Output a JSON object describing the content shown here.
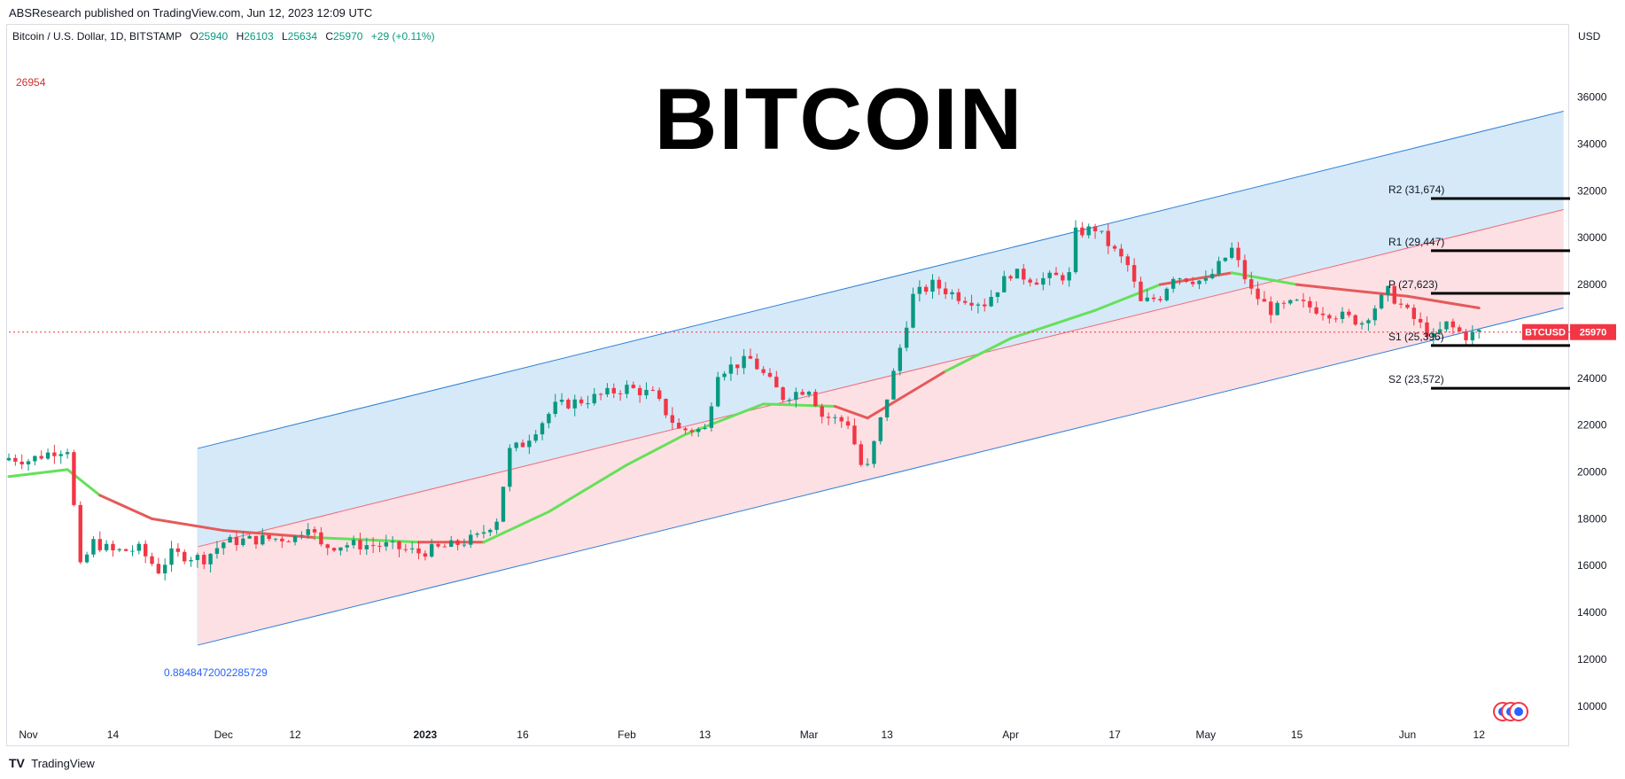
{
  "header": {
    "caption": "ABSResearch published on TradingView.com, Jun 12, 2023 12:09 UTC",
    "title": "BITCOIN"
  },
  "legend": {
    "symbol": "Bitcoin / U.S. Dollar, 1D, BITSTAMP",
    "o_label": "O",
    "o_value": "25940",
    "h_label": "H",
    "h_value": "26103",
    "l_label": "L",
    "l_value": "25634",
    "c_label": "C",
    "c_value": "25970",
    "change": "+29 (+0.11%)",
    "up_color": "#089981",
    "down_color": "#f23645"
  },
  "currency": "USD",
  "high_marker": "26954",
  "fib_level_label": "0.8848472002285729",
  "price_tag": {
    "symbol": "BTCUSD",
    "value": "25970",
    "color": "#f23645"
  },
  "footer": {
    "logo": "TV",
    "brand": "TradingView"
  },
  "chart_data": {
    "type": "candlestick",
    "title": "BITCOIN",
    "instrument": "Bitcoin / U.S. Dollar",
    "interval": "1D",
    "exchange": "BITSTAMP",
    "y_axis": {
      "label": "USD",
      "range": [
        9500,
        37500
      ],
      "ticks": [
        10000,
        12000,
        14000,
        16000,
        18000,
        20000,
        22000,
        24000,
        26000,
        28000,
        30000,
        32000,
        34000,
        36000
      ]
    },
    "x_axis": {
      "range": [
        "2022-10-29",
        "2023-06-26"
      ],
      "ticks": [
        {
          "label": "Nov",
          "date": "2022-11-01"
        },
        {
          "label": "14",
          "date": "2022-11-14"
        },
        {
          "label": "Dec",
          "date": "2022-12-01"
        },
        {
          "label": "12",
          "date": "2022-12-12"
        },
        {
          "label": "2023",
          "date": "2023-01-01",
          "bold": true
        },
        {
          "label": "16",
          "date": "2023-01-16"
        },
        {
          "label": "Feb",
          "date": "2023-02-01"
        },
        {
          "label": "13",
          "date": "2023-02-13"
        },
        {
          "label": "Mar",
          "date": "2023-03-01"
        },
        {
          "label": "13",
          "date": "2023-03-13"
        },
        {
          "label": "Apr",
          "date": "2023-04-01"
        },
        {
          "label": "17",
          "date": "2023-04-17"
        },
        {
          "label": "May",
          "date": "2023-05-01"
        },
        {
          "label": "15",
          "date": "2023-05-15"
        },
        {
          "label": "Jun",
          "date": "2023-06-01"
        },
        {
          "label": "12",
          "date": "2023-06-12"
        }
      ]
    },
    "close_series": [
      [
        "2022-10-29",
        20600
      ],
      [
        "2022-11-01",
        20500
      ],
      [
        "2022-11-05",
        20900
      ],
      [
        "2022-11-07",
        21000
      ],
      [
        "2022-11-08",
        18500
      ],
      [
        "2022-11-09",
        15900
      ],
      [
        "2022-11-11",
        17000
      ],
      [
        "2022-11-14",
        16600
      ],
      [
        "2022-11-18",
        16700
      ],
      [
        "2022-11-21",
        15800
      ],
      [
        "2022-11-23",
        16500
      ],
      [
        "2022-11-28",
        16300
      ],
      [
        "2022-12-01",
        17000
      ],
      [
        "2022-12-05",
        17100
      ],
      [
        "2022-12-12",
        17200
      ],
      [
        "2022-12-14",
        17800
      ],
      [
        "2022-12-16",
        16800
      ],
      [
        "2022-12-20",
        16900
      ],
      [
        "2022-12-26",
        16850
      ],
      [
        "2022-12-31",
        16550
      ],
      [
        "2023-01-05",
        16850
      ],
      [
        "2023-01-09",
        17200
      ],
      [
        "2023-01-12",
        18000
      ],
      [
        "2023-01-14",
        20900
      ],
      [
        "2023-01-16",
        21200
      ],
      [
        "2023-01-21",
        22800
      ],
      [
        "2023-01-26",
        23100
      ],
      [
        "2023-02-01",
        23600
      ],
      [
        "2023-02-05",
        23300
      ],
      [
        "2023-02-09",
        21800
      ],
      [
        "2023-02-13",
        21800
      ],
      [
        "2023-02-15",
        24300
      ],
      [
        "2023-02-20",
        24800
      ],
      [
        "2023-02-25",
        23200
      ],
      [
        "2023-03-01",
        23600
      ],
      [
        "2023-03-03",
        22400
      ],
      [
        "2023-03-07",
        22100
      ],
      [
        "2023-03-09",
        20300
      ],
      [
        "2023-03-10",
        20200
      ],
      [
        "2023-03-12",
        22200
      ],
      [
        "2023-03-14",
        24200
      ],
      [
        "2023-03-17",
        27500
      ],
      [
        "2023-03-20",
        28000
      ],
      [
        "2023-03-24",
        27500
      ],
      [
        "2023-03-28",
        27200
      ],
      [
        "2023-04-01",
        28500
      ],
      [
        "2023-04-05",
        28200
      ],
      [
        "2023-04-10",
        28400
      ],
      [
        "2023-04-11",
        30200
      ],
      [
        "2023-04-14",
        30400
      ],
      [
        "2023-04-17",
        29400
      ],
      [
        "2023-04-19",
        28800
      ],
      [
        "2023-04-21",
        27200
      ],
      [
        "2023-04-24",
        27500
      ],
      [
        "2023-04-26",
        28400
      ],
      [
        "2023-05-01",
        28100
      ],
      [
        "2023-05-05",
        29500
      ],
      [
        "2023-05-08",
        27700
      ],
      [
        "2023-05-11",
        26900
      ],
      [
        "2023-05-15",
        27200
      ],
      [
        "2023-05-20",
        26800
      ],
      [
        "2023-05-25",
        26400
      ],
      [
        "2023-05-29",
        27700
      ],
      [
        "2023-06-01",
        26800
      ],
      [
        "2023-06-05",
        25700
      ],
      [
        "2023-06-07",
        26300
      ],
      [
        "2023-06-10",
        25800
      ],
      [
        "2023-06-12",
        25970
      ]
    ],
    "moving_average": [
      [
        "2022-10-29",
        19800
      ],
      [
        "2022-11-07",
        20100
      ],
      [
        "2022-11-12",
        19000
      ],
      [
        "2022-11-20",
        18000
      ],
      [
        "2022-12-01",
        17500
      ],
      [
        "2022-12-15",
        17200
      ],
      [
        "2022-12-31",
        17000
      ],
      [
        "2023-01-10",
        17000
      ],
      [
        "2023-01-20",
        18300
      ],
      [
        "2023-02-01",
        20300
      ],
      [
        "2023-02-10",
        21600
      ],
      [
        "2023-02-22",
        22900
      ],
      [
        "2023-03-05",
        22800
      ],
      [
        "2023-03-10",
        22300
      ],
      [
        "2023-03-22",
        24300
      ],
      [
        "2023-04-01",
        25700
      ],
      [
        "2023-04-14",
        26900
      ],
      [
        "2023-04-24",
        28000
      ],
      [
        "2023-05-05",
        28500
      ],
      [
        "2023-05-15",
        28000
      ],
      [
        "2023-05-25",
        27700
      ],
      [
        "2023-06-01",
        27500
      ],
      [
        "2023-06-12",
        27000
      ]
    ],
    "regression_channel": {
      "start": "2022-11-27",
      "end": "2023-06-25",
      "upper": [
        21000,
        35400
      ],
      "middle": [
        16800,
        31200
      ],
      "lower": [
        12600,
        27000
      ]
    },
    "pivot_levels": [
      {
        "label": "R2 (31,674)",
        "value": 31674
      },
      {
        "label": "R1 (29,447)",
        "value": 29447
      },
      {
        "label": "P (27,623)",
        "value": 27623
      },
      {
        "label": "S1 (25,396)",
        "value": 25396
      },
      {
        "label": "S2 (23,572)",
        "value": 23572
      }
    ],
    "last_price": 25970,
    "colors": {
      "up": "#089981",
      "down": "#f23645",
      "ma_green": "#66e05a",
      "ma_red": "#e55a5a",
      "channel_line": "#2f80d8",
      "upper_fill": "#d6e9f8",
      "lower_fill": "#fde0e4"
    }
  }
}
